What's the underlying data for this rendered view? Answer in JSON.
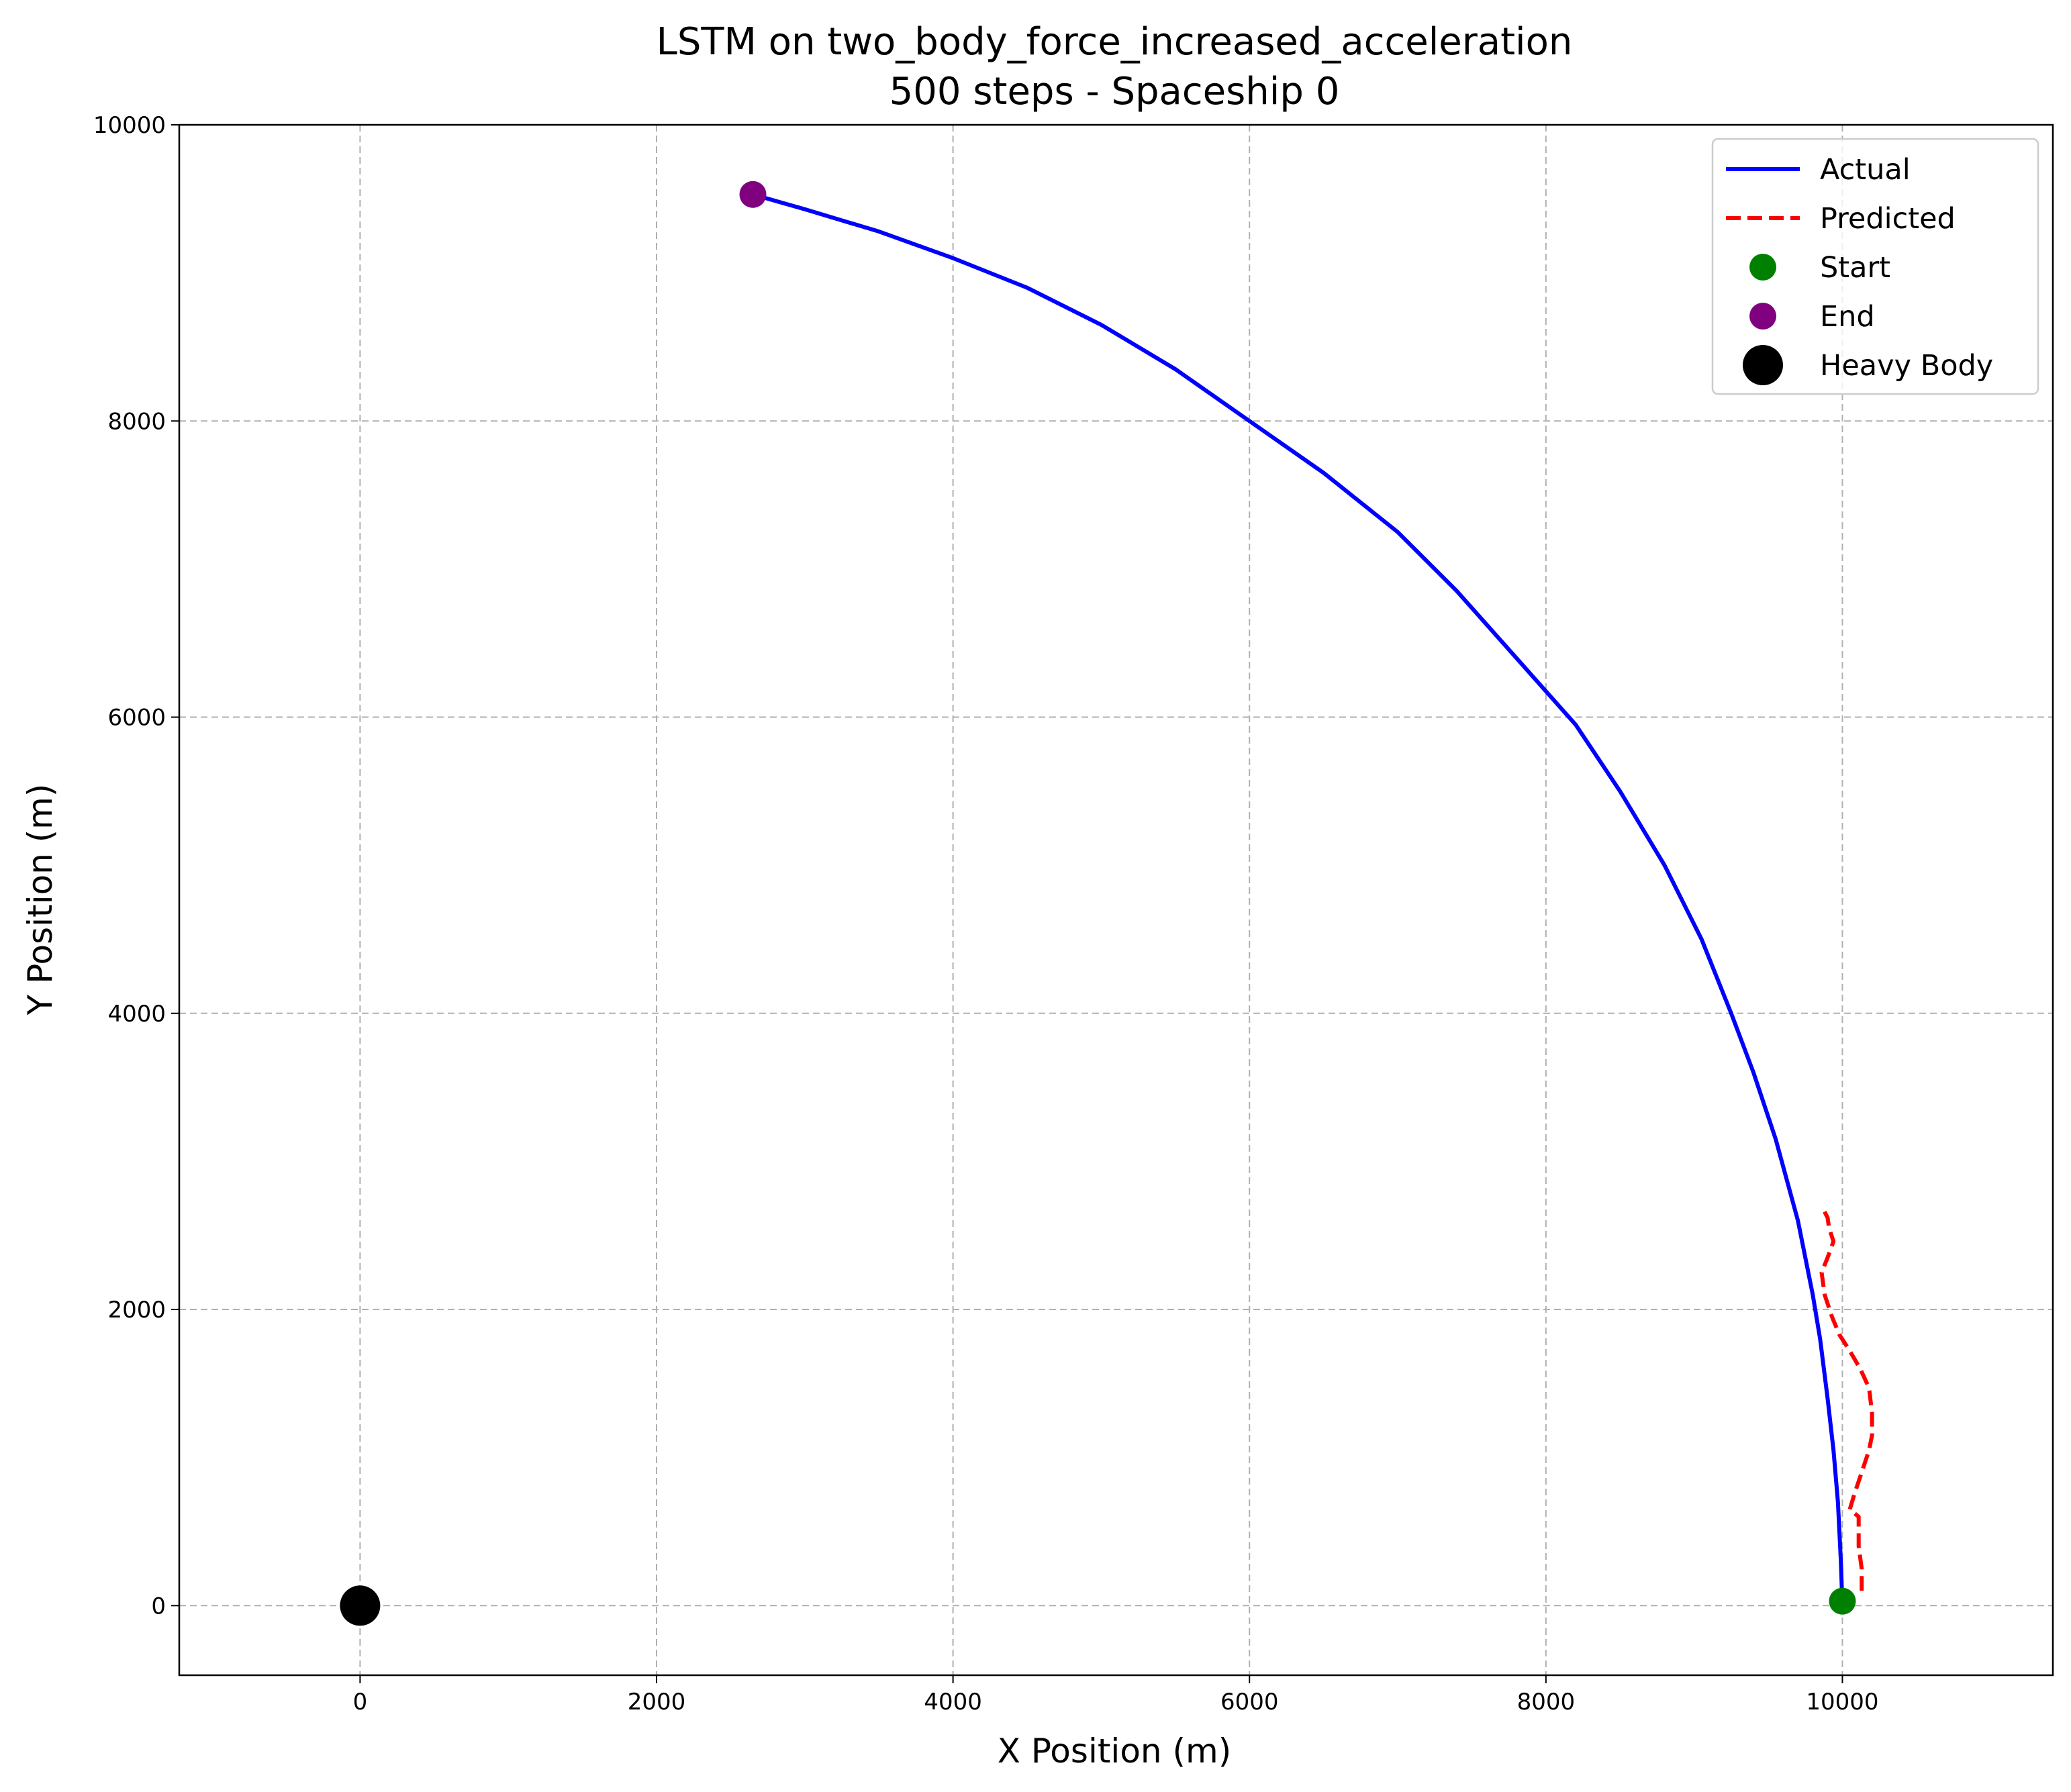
{
  "chart_data": {
    "type": "line",
    "title": "LSTM on two_body_force_increased_acceleration",
    "subtitle": "500 steps - Spaceship 0",
    "xlabel": "X Position (m)",
    "ylabel": "Y Position (m)",
    "xlim": [
      -1220,
      11420
    ],
    "ylim": [
      -470,
      10000
    ],
    "x_ticks": [
      0,
      2000,
      4000,
      6000,
      8000,
      10000
    ],
    "y_ticks": [
      0,
      2000,
      4000,
      6000,
      8000,
      10000
    ],
    "x_tick_labels": [
      "0",
      "2000",
      "4000",
      "6000",
      "8000",
      "10000"
    ],
    "y_tick_labels": [
      "0",
      "2000",
      "4000",
      "6000",
      "8000",
      "10000"
    ],
    "grid": true,
    "grid_style": "dashed",
    "legend_position": "top-right",
    "series": [
      {
        "name": "Actual",
        "kind": "line",
        "color": "#0000ff",
        "linestyle": "solid",
        "x": [
          10000,
          9990,
          9970,
          9940,
          9900,
          9850,
          9800,
          9700,
          9550,
          9400,
          9250,
          9050,
          8800,
          8500,
          8200,
          7800,
          7400,
          7000,
          6500,
          6000,
          5500,
          5000,
          4500,
          4000,
          3500,
          3000,
          2650
        ],
        "y": [
          0,
          300,
          700,
          1050,
          1400,
          1800,
          2100,
          2600,
          3150,
          3600,
          4000,
          4500,
          5000,
          5500,
          5950,
          6400,
          6850,
          7250,
          7650,
          8000,
          8350,
          8650,
          8900,
          9100,
          9280,
          9430,
          9530
        ]
      },
      {
        "name": "Predicted",
        "kind": "line",
        "color": "#ff0000",
        "linestyle": "dashed",
        "x": [
          10130,
          10130,
          10110,
          10110,
          10050,
          10080,
          10130,
          10180,
          10200,
          10200,
          10180,
          10120,
          10050,
          9980,
          9930,
          9880,
          9860,
          9900,
          9940,
          9910,
          9900,
          9870
        ],
        "y": [
          100,
          250,
          400,
          600,
          650,
          750,
          900,
          1050,
          1150,
          1300,
          1470,
          1600,
          1720,
          1830,
          1950,
          2100,
          2250,
          2350,
          2460,
          2550,
          2620,
          2680
        ]
      },
      {
        "name": "Start",
        "kind": "marker",
        "color": "#008000",
        "x": [
          10000
        ],
        "y": [
          30
        ]
      },
      {
        "name": "End",
        "kind": "marker",
        "color": "#800080",
        "x": [
          2650
        ],
        "y": [
          9530
        ]
      },
      {
        "name": "Heavy Body",
        "kind": "marker",
        "color": "#000000",
        "x": [
          0
        ],
        "y": [
          0
        ]
      }
    ]
  }
}
